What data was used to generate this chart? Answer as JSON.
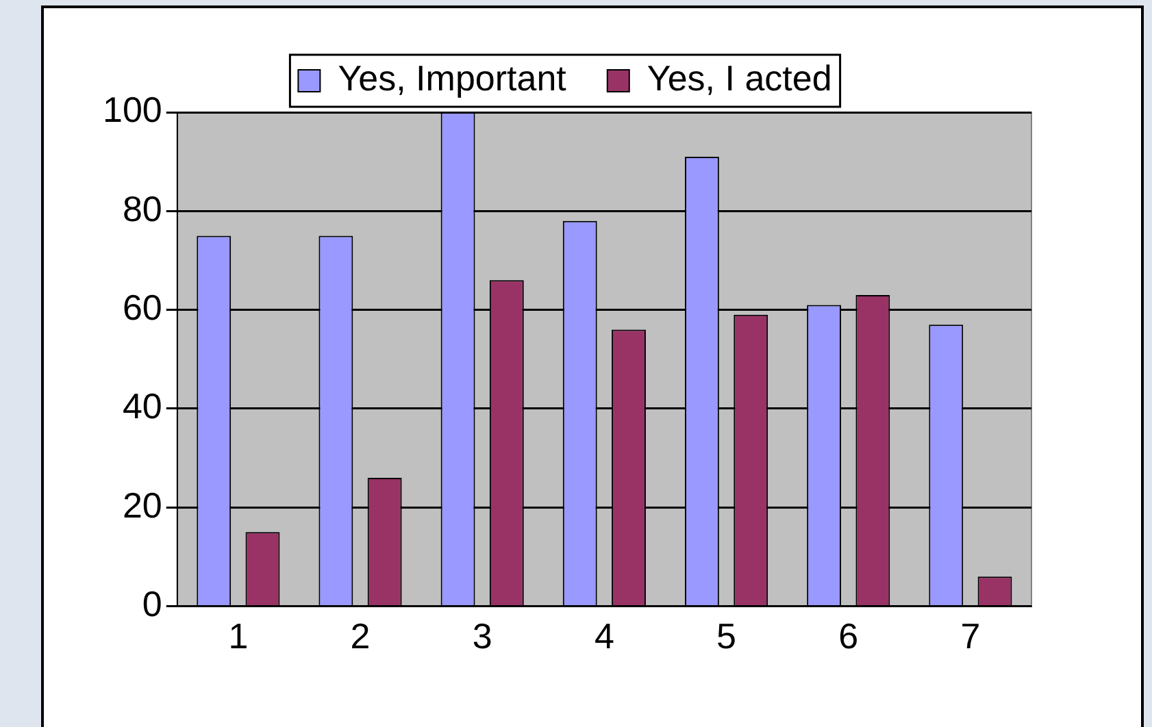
{
  "chart_data": {
    "type": "bar",
    "categories": [
      "1",
      "2",
      "3",
      "4",
      "5",
      "6",
      "7"
    ],
    "series": [
      {
        "name": "Yes, Important",
        "color": "#9999ff",
        "values": [
          75,
          75,
          100,
          78,
          91,
          61,
          57
        ]
      },
      {
        "name": "Yes, I acted",
        "color": "#993366",
        "values": [
          15,
          26,
          66,
          56,
          59,
          63,
          6
        ]
      }
    ],
    "ylim": [
      0,
      100
    ],
    "yticks": [
      0,
      20,
      40,
      60,
      80,
      100
    ],
    "grid": "y",
    "legend": "top"
  }
}
